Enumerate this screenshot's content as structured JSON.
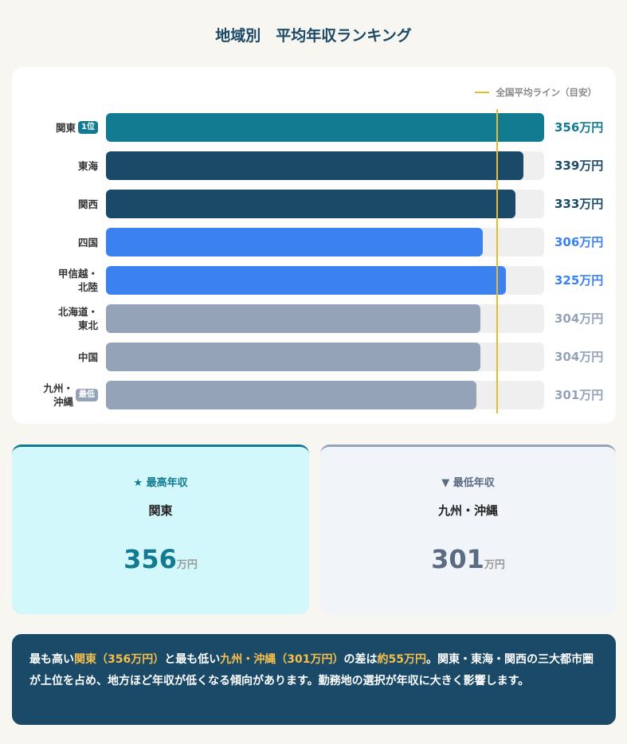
{
  "title": "地域別　平均年収ランキング",
  "chart_data": {
    "type": "hbar",
    "categories": [
      "関東",
      "東海",
      "関西",
      "四国",
      "甲信越・\n北陸",
      "北海道・\n東北",
      "中国",
      "九州・\n沖縄"
    ],
    "values": [
      356,
      339,
      333,
      306,
      325,
      304,
      304,
      301
    ],
    "value_labels": [
      "356万円",
      "339万円",
      "333万円",
      "306万円",
      "325万円",
      "304万円",
      "304万円",
      "301万円"
    ],
    "colors": [
      "#127a91",
      "#1b4a69",
      "#1b4a69",
      "#3b82f0",
      "#3b82f0",
      "#94a3b8",
      "#94a3b8",
      "#94a3b8"
    ],
    "label_colors": [
      "#127a91",
      "#1b4a69",
      "#1b4a69",
      "#3b82f0",
      "#3b82f0",
      "#94a3b8",
      "#94a3b8",
      "#94a3b8"
    ],
    "rank_badges": [
      "1位",
      null,
      null,
      null,
      null,
      null,
      null,
      "最低"
    ],
    "xlim": [
      0,
      356
    ],
    "reference_line": {
      "label": "全国平均ライン（目安）",
      "value": 318,
      "color": "#e8b931"
    },
    "legend_position": "top-right"
  },
  "summary_cards": [
    {
      "label": "★ 最高年収",
      "region": "関東",
      "value": "356",
      "unit": "万円",
      "accent": "#127a91",
      "background": "#d3f8fb",
      "value_color": "#127a91"
    },
    {
      "label": "▼ 最低年収",
      "region": "九州・沖縄",
      "value": "301",
      "unit": "万円",
      "accent": "#94a3b8",
      "background": "#f1f4f8",
      "value_color": "#5b6b84"
    }
  ],
  "note": [
    {
      "text": "最も高い",
      "highlight": false
    },
    {
      "text": "関東（356万円）",
      "highlight": true
    },
    {
      "text": "と最も低い",
      "highlight": false
    },
    {
      "text": "九州・沖縄（301万円）",
      "highlight": true
    },
    {
      "text": "の差は",
      "highlight": false
    },
    {
      "text": "約55万円",
      "highlight": true
    },
    {
      "text": "。関東・東海・関西の三大都市圏が上位を占め、地方ほど年収が低くなる傾向があります。勤務地の選択が年収に大きく影響します。",
      "highlight": false
    }
  ]
}
